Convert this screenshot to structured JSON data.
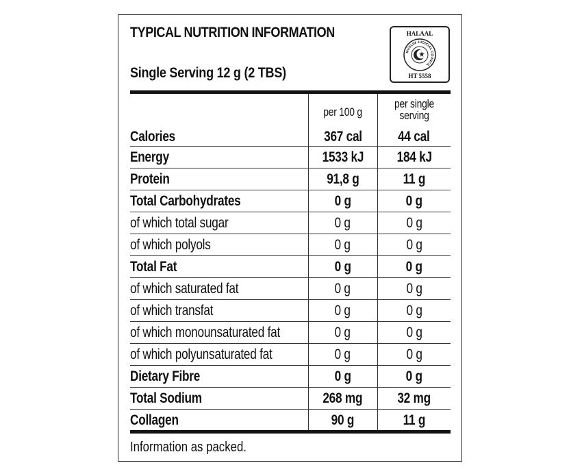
{
  "header": {
    "title": "TYPICAL NUTRITION INFORMATION",
    "serving": "Single Serving 12 g (2 TBS)"
  },
  "badge": {
    "top_text": "HALAAL",
    "bottom_text": "HT 5558",
    "ring_text": "MUSLIM JUDICIAL COUNCIL",
    "icon": "crescent-star-icon"
  },
  "table": {
    "columns": [
      "",
      "per 100 g",
      "per single serving"
    ],
    "rows": [
      {
        "label": "Calories",
        "per100": "367 cal",
        "perServing": "44 cal",
        "bold": true
      },
      {
        "label": "Energy",
        "per100": "1533 kJ",
        "perServing": "184 kJ",
        "bold": true
      },
      {
        "label": "Protein",
        "per100": "91,8 g",
        "perServing": "11 g",
        "bold": true
      },
      {
        "label": "Total Carbohydrates",
        "per100": "0 g",
        "perServing": "0 g",
        "bold": true
      },
      {
        "label": "of which total sugar",
        "per100": "0 g",
        "perServing": "0 g",
        "bold": false
      },
      {
        "label": "of which polyols",
        "per100": "0 g",
        "perServing": "0 g",
        "bold": false
      },
      {
        "label": "Total Fat",
        "per100": "0 g",
        "perServing": "0 g",
        "bold": true
      },
      {
        "label": "of which saturated fat",
        "per100": "0 g",
        "perServing": "0 g",
        "bold": false
      },
      {
        "label": "of which transfat",
        "per100": "0 g",
        "perServing": "0 g",
        "bold": false
      },
      {
        "label": "of which monounsaturated fat",
        "per100": "0 g",
        "perServing": "0 g",
        "bold": false
      },
      {
        "label": "of which polyunsaturated fat",
        "per100": "0 g",
        "perServing": "0 g",
        "bold": false
      },
      {
        "label": "Dietary Fibre",
        "per100": "0 g",
        "perServing": "0 g",
        "bold": true
      },
      {
        "label": "Total Sodium",
        "per100": "268 mg",
        "perServing": "32 mg",
        "bold": true
      },
      {
        "label": "Collagen",
        "per100": "90 g",
        "perServing": "11 g",
        "bold": true
      }
    ]
  },
  "footnote": "Information as packed."
}
